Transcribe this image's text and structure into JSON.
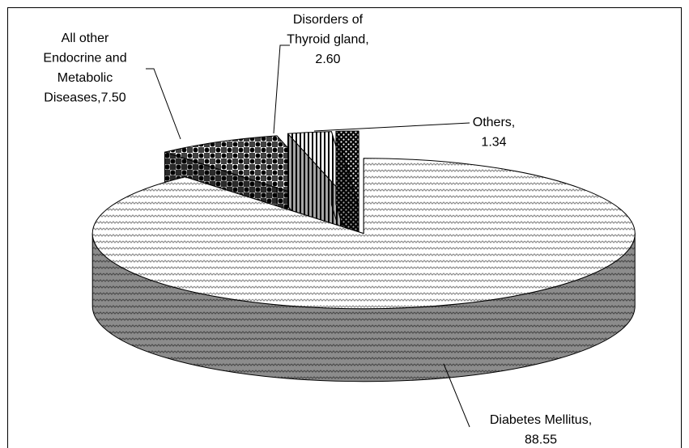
{
  "chart_data": {
    "type": "pie",
    "three_d": true,
    "categories": [
      "Diabetes Mellitus",
      "All other Endocrine and Metabolic Diseases",
      "Disorders of Thyroid gland",
      "Others"
    ],
    "values": [
      88.55,
      7.5,
      2.6,
      1.34
    ],
    "value_labels": [
      "88.55",
      "7.50",
      "2.60",
      "1.34"
    ],
    "label_separator": ", ",
    "colors": [
      "#8c8c8c",
      "#000000",
      "#000000",
      "#000000"
    ]
  }
}
